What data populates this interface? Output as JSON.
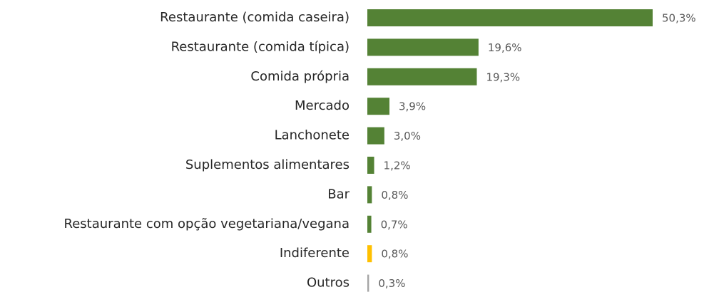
{
  "chart_data": {
    "type": "barh",
    "categories": [
      "Restaurante (comida caseira)",
      "Restaurante (comida típica)",
      "Comida própria",
      "Mercado",
      "Lanchonete",
      "Suplementos alimentares",
      "Bar",
      "Restaurante com opção vegetariana/vegana",
      "Indiferente",
      "Outros"
    ],
    "values": [
      50.3,
      19.6,
      19.3,
      3.9,
      3.0,
      1.2,
      0.8,
      0.7,
      0.8,
      0.3
    ],
    "value_labels": [
      "50,3%",
      "19,6%",
      "19,3%",
      "3,9%",
      "3,0%",
      "1,2%",
      "0,8%",
      "0,7%",
      "0,8%",
      "0,3%"
    ],
    "colors": [
      "#548235",
      "#548235",
      "#548235",
      "#548235",
      "#548235",
      "#548235",
      "#548235",
      "#548235",
      "#ffc000",
      "#a5a5a5"
    ]
  }
}
